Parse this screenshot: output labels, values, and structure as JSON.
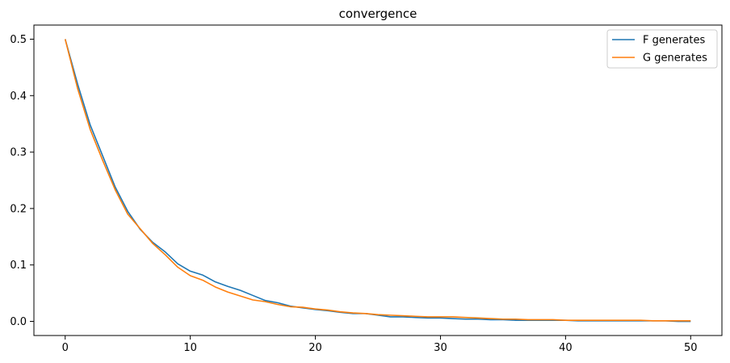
{
  "chart_data": {
    "type": "line",
    "title": "convergence",
    "xlabel": "",
    "ylabel": "",
    "xlim": [
      -2.5,
      52.5
    ],
    "ylim": [
      -0.025,
      0.525
    ],
    "xticks": [
      0,
      10,
      20,
      30,
      40,
      50
    ],
    "xtick_labels": [
      "0",
      "10",
      "20",
      "30",
      "40",
      "50"
    ],
    "yticks": [
      0.0,
      0.1,
      0.2,
      0.3,
      0.4,
      0.5
    ],
    "ytick_labels": [
      "0.0",
      "0.1",
      "0.2",
      "0.3",
      "0.4",
      "0.5"
    ],
    "grid": false,
    "legend_position": "top-right",
    "x": [
      0,
      1,
      2,
      3,
      4,
      5,
      6,
      7,
      8,
      9,
      10,
      11,
      12,
      13,
      14,
      15,
      16,
      17,
      18,
      19,
      20,
      21,
      22,
      23,
      24,
      25,
      26,
      27,
      28,
      29,
      30,
      31,
      32,
      33,
      34,
      35,
      36,
      37,
      38,
      39,
      40,
      41,
      42,
      43,
      44,
      45,
      46,
      47,
      48,
      49,
      50
    ],
    "series": [
      {
        "name": "F generates",
        "color": "#1f77b4",
        "values": [
          0.5,
          0.42,
          0.348,
          0.293,
          0.238,
          0.195,
          0.163,
          0.14,
          0.123,
          0.102,
          0.089,
          0.082,
          0.07,
          0.062,
          0.055,
          0.046,
          0.037,
          0.033,
          0.027,
          0.024,
          0.021,
          0.019,
          0.016,
          0.014,
          0.014,
          0.011,
          0.008,
          0.008,
          0.007,
          0.006,
          0.006,
          0.005,
          0.004,
          0.004,
          0.003,
          0.003,
          0.002,
          0.002,
          0.002,
          0.002,
          0.002,
          0.001,
          0.001,
          0.001,
          0.001,
          0.001,
          0.001,
          0.001,
          0.001,
          0.0,
          0.0
        ]
      },
      {
        "name": "G generates",
        "color": "#ff7f0e",
        "values": [
          0.5,
          0.412,
          0.34,
          0.285,
          0.233,
          0.19,
          0.164,
          0.138,
          0.118,
          0.096,
          0.081,
          0.073,
          0.061,
          0.052,
          0.045,
          0.038,
          0.035,
          0.03,
          0.026,
          0.025,
          0.022,
          0.02,
          0.017,
          0.015,
          0.014,
          0.012,
          0.011,
          0.01,
          0.009,
          0.008,
          0.008,
          0.008,
          0.007,
          0.006,
          0.005,
          0.004,
          0.004,
          0.003,
          0.003,
          0.003,
          0.002,
          0.002,
          0.002,
          0.002,
          0.002,
          0.002,
          0.002,
          0.001,
          0.001,
          0.001,
          0.001
        ]
      }
    ]
  }
}
